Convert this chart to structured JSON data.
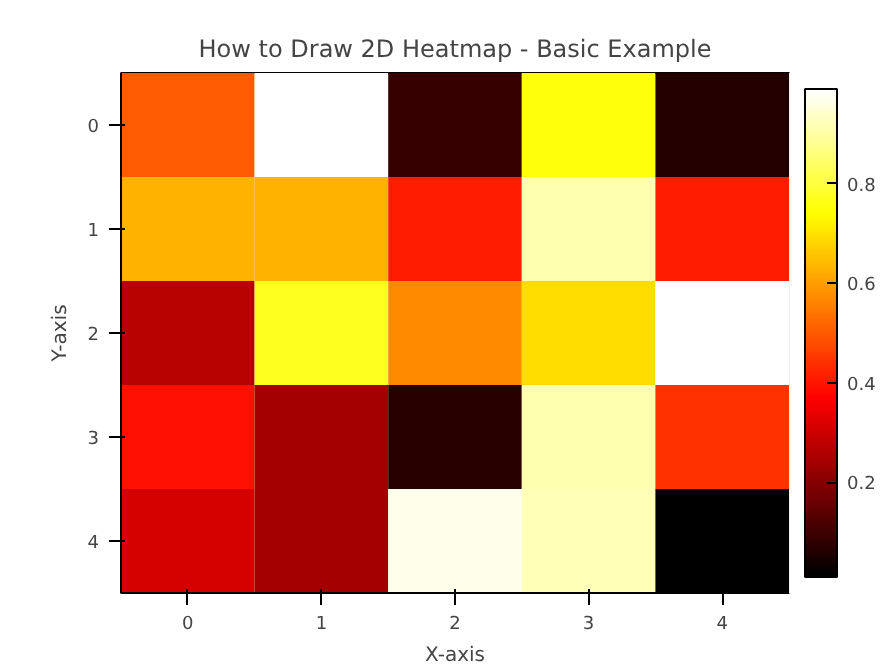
{
  "chart_data": {
    "type": "heatmap",
    "title": "How to Draw 2D Heatmap - Basic Example",
    "xlabel": "X-axis",
    "ylabel": "Y-axis",
    "categories": [
      "0",
      "1",
      "2",
      "3",
      "4"
    ],
    "y_categories": [
      "0",
      "1",
      "2",
      "3",
      "4"
    ],
    "cells": [
      [
        0.5,
        0.99,
        0.09,
        0.75,
        0.06
      ],
      [
        0.63,
        0.63,
        0.41,
        0.91,
        0.41
      ],
      [
        0.27,
        0.77,
        0.57,
        0.69,
        0.99
      ],
      [
        0.39,
        0.24,
        0.07,
        0.91,
        0.44
      ],
      [
        0.31,
        0.24,
        0.97,
        0.92,
        0.01
      ]
    ],
    "clim": [
      0.01,
      0.99
    ],
    "cticks": [
      0.2,
      0.4,
      0.6,
      0.8
    ]
  }
}
